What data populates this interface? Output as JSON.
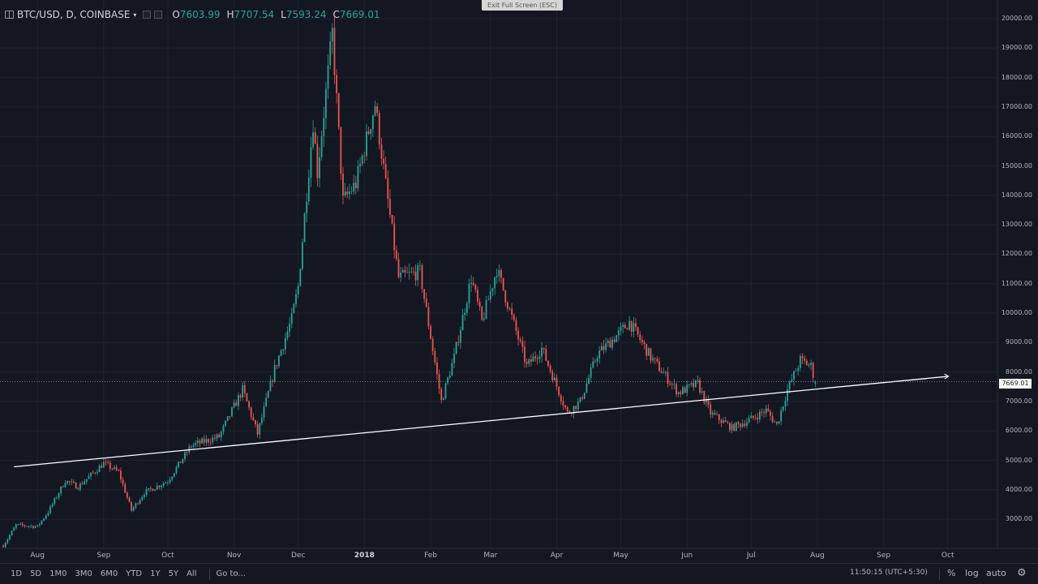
{
  "header": {
    "symbol": "BTC/USD, D, COINBASE",
    "caret": "▾",
    "open_label": "O",
    "open": "7603.99",
    "high_label": "H",
    "high": "7707.54",
    "low_label": "L",
    "low": "7593.24",
    "close_label": "C",
    "close": "7669.01",
    "up_color": "#26a69a"
  },
  "fullscreen": {
    "label": "Exit Full Screen (ESC)"
  },
  "price_axis": {
    "ticks": [
      "20000.00",
      "19000.00",
      "18000.00",
      "17000.00",
      "16000.00",
      "15000.00",
      "14000.00",
      "13000.00",
      "12000.00",
      "11000.00",
      "10000.00",
      "9000.00",
      "8000.00",
      "7000.00",
      "6000.00",
      "5000.00",
      "4000.00",
      "3000.00"
    ],
    "last_price": "7669.01"
  },
  "time_axis": {
    "ticks": [
      "Aug",
      "Sep",
      "Oct",
      "Nov",
      "Dec",
      "2018",
      "Feb",
      "Mar",
      "Apr",
      "May",
      "Jun",
      "Jul",
      "Aug",
      "Sep",
      "Oct"
    ]
  },
  "bottom_bar": {
    "ranges": [
      "1D",
      "5D",
      "1M0",
      "3M0",
      "6M0",
      "YTD",
      "1Y",
      "5Y",
      "All"
    ],
    "goto": "Go to...",
    "clock": "11:50:15 (UTC+5:30)",
    "percent": "%",
    "log": "log",
    "auto": "auto",
    "settings_icon": "gear-icon"
  },
  "colors": {
    "up": "#26a69a",
    "down": "#ef5350",
    "background": "#131722",
    "grid": "#1e222d",
    "trendline": "#ffffff"
  },
  "chart_data": {
    "type": "candlestick",
    "title": "BTC/USD, D, COINBASE",
    "y_range": [
      2200,
      20300
    ],
    "x_range": [
      "2017-07-15",
      "2018-10-05"
    ],
    "trendline": {
      "from": {
        "date": "2017-07-21",
        "price": 4780
      },
      "to": {
        "date": "2018-10-01",
        "price": 7850
      },
      "extends": "right"
    },
    "last_price": 7669.01,
    "anchors": [
      [
        "2017-07-16",
        2100
      ],
      [
        "2017-07-22",
        2800
      ],
      [
        "2017-08-01",
        2750
      ],
      [
        "2017-08-06",
        3250
      ],
      [
        "2017-08-14",
        4300
      ],
      [
        "2017-08-20",
        4100
      ],
      [
        "2017-09-01",
        4900
      ],
      [
        "2017-09-08",
        4600
      ],
      [
        "2017-09-14",
        3300
      ],
      [
        "2017-09-20",
        3900
      ],
      [
        "2017-10-01",
        4300
      ],
      [
        "2017-10-12",
        5500
      ],
      [
        "2017-10-25",
        5800
      ],
      [
        "2017-11-05",
        7400
      ],
      [
        "2017-11-12",
        5900
      ],
      [
        "2017-11-20",
        8100
      ],
      [
        "2017-11-28",
        9800
      ],
      [
        "2017-12-01",
        10900
      ],
      [
        "2017-12-08",
        16500
      ],
      [
        "2017-12-10",
        14800
      ],
      [
        "2017-12-17",
        19500
      ],
      [
        "2017-12-22",
        13800
      ],
      [
        "2017-12-28",
        14400
      ],
      [
        "2018-01-06",
        17100
      ],
      [
        "2018-01-12",
        13800
      ],
      [
        "2018-01-17",
        11200
      ],
      [
        "2018-01-27",
        11400
      ],
      [
        "2018-02-06",
        7000
      ],
      [
        "2018-02-12",
        8500
      ],
      [
        "2018-02-20",
        11200
      ],
      [
        "2018-02-25",
        9700
      ],
      [
        "2018-03-04",
        11500
      ],
      [
        "2018-03-18",
        8200
      ],
      [
        "2018-03-25",
        8800
      ],
      [
        "2018-04-06",
        6600
      ],
      [
        "2018-04-12",
        7000
      ],
      [
        "2018-04-20",
        8600
      ],
      [
        "2018-04-30",
        9300
      ],
      [
        "2018-05-05",
        9700
      ],
      [
        "2018-05-15",
        8500
      ],
      [
        "2018-05-28",
        7300
      ],
      [
        "2018-06-06",
        7600
      ],
      [
        "2018-06-12",
        6600
      ],
      [
        "2018-06-22",
        6100
      ],
      [
        "2018-07-01",
        6400
      ],
      [
        "2018-07-08",
        6700
      ],
      [
        "2018-07-13",
        6200
      ],
      [
        "2018-07-18",
        7400
      ],
      [
        "2018-07-24",
        8400
      ],
      [
        "2018-07-29",
        8200
      ],
      [
        "2018-07-31",
        7669
      ]
    ]
  }
}
